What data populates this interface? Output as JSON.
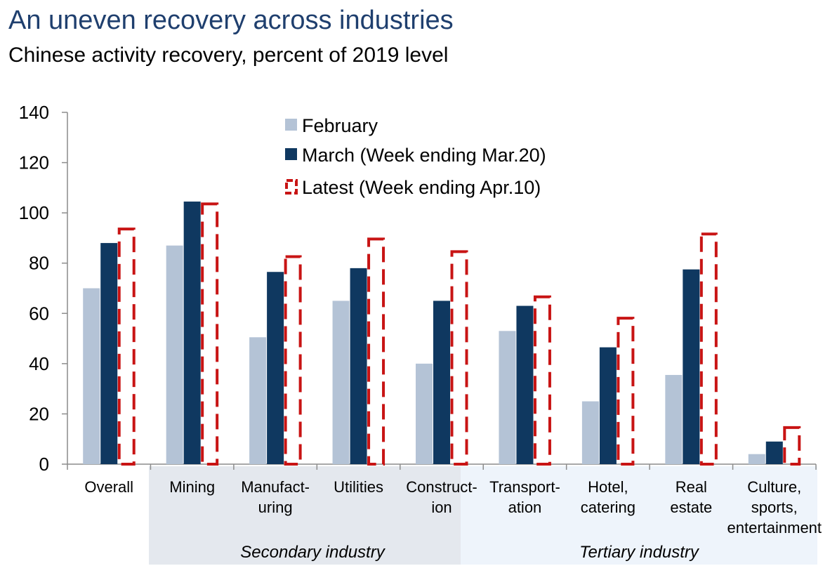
{
  "header": {
    "title": "An uneven recovery across industries",
    "subtitle": "Chinese activity recovery, percent of 2019 level"
  },
  "chart_data": {
    "type": "bar",
    "title": "An uneven recovery across industries",
    "subtitle": "Chinese activity recovery, percent of 2019 level",
    "categories": [
      [
        "Overall"
      ],
      [
        "Mining"
      ],
      [
        "Manufact-",
        "uring"
      ],
      [
        "Utilities"
      ],
      [
        "Construct-",
        "ion"
      ],
      [
        "Transport-",
        "ation"
      ],
      [
        "Hotel,",
        "catering"
      ],
      [
        "Real",
        "estate"
      ],
      [
        "Culture,",
        "sports,",
        "entertainment"
      ]
    ],
    "series": [
      {
        "name": "February",
        "values": [
          70,
          87,
          50.5,
          65,
          40,
          53,
          25,
          35.5,
          4
        ],
        "color": "#b4c3d6",
        "style": "solid"
      },
      {
        "name": "March (Week ending Mar.20)",
        "values": [
          88,
          104.5,
          76.5,
          78,
          65,
          63,
          46.5,
          77.5,
          9
        ],
        "color": "#0f3860",
        "style": "solid"
      },
      {
        "name": "Latest (Week ending Apr.10)",
        "values": [
          94,
          104,
          83,
          90,
          85,
          67,
          58.5,
          92,
          15
        ],
        "color": "#c81414",
        "style": "dashed"
      }
    ],
    "yticks": [
      "0",
      "20",
      "40",
      "60",
      "80",
      "100",
      "120",
      "140"
    ],
    "ylim": [
      0,
      140
    ],
    "grid": false,
    "legend_position": "top-center",
    "groups": [
      {
        "label": "Secondary industry",
        "categories": [
          1,
          2,
          3,
          4
        ]
      },
      {
        "label": "Tertiary industry",
        "categories": [
          5,
          6,
          7,
          8
        ]
      }
    ]
  }
}
